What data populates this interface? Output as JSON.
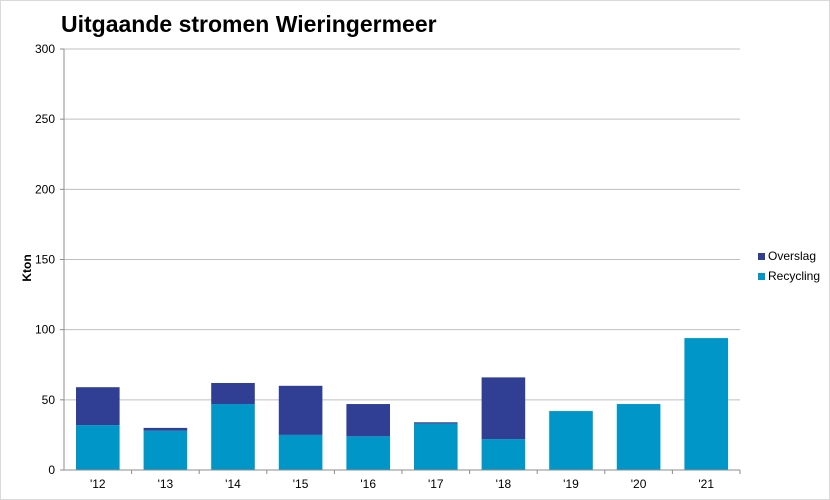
{
  "chart_data": {
    "type": "bar",
    "stacked": true,
    "title": "Uitgaande stromen Wieringermeer",
    "xlabel": "",
    "ylabel": "Kton",
    "ylim": [
      0,
      300
    ],
    "yticks": [
      0,
      50,
      100,
      150,
      200,
      250,
      300
    ],
    "grid": true,
    "legend_position": "right",
    "categories": [
      "'12",
      "'13",
      "'14",
      "'15",
      "'16",
      "'17",
      "'18",
      "'19",
      "'20",
      "'21"
    ],
    "series": [
      {
        "name": "Recycling",
        "color": "#0096c8",
        "values": [
          32,
          28,
          47,
          25,
          24,
          33,
          22,
          42,
          47,
          94
        ]
      },
      {
        "name": "Overslag",
        "color": "#303f94",
        "values": [
          27,
          2,
          15,
          35,
          23,
          1,
          44,
          0,
          0,
          0
        ]
      }
    ]
  }
}
